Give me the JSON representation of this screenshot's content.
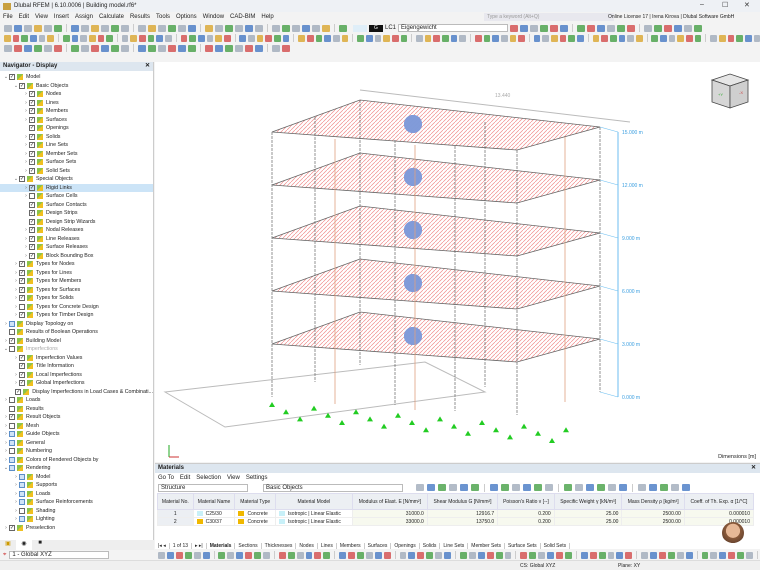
{
  "window": {
    "title": "Dlubal RFEM | 6.10.0006 | Building model.rf6*",
    "minimize": "–",
    "maximize": "☐",
    "close": "✕"
  },
  "menu": [
    "File",
    "Edit",
    "View",
    "Insert",
    "Assign",
    "Calculate",
    "Results",
    "Tools",
    "Options",
    "Window",
    "CAD-BIM",
    "Help"
  ],
  "search": {
    "placeholder": "Type a keyword (Alt+Q)"
  },
  "license": "Online License 17 | Irena Kirova | Dlubal Software GmbH",
  "loadcase": {
    "color_label": "G",
    "id": "LC1",
    "name": "Eigengewicht"
  },
  "navigator": {
    "title": "Navigator - Display",
    "items": [
      {
        "label": "Model",
        "level": 0,
        "arrow": "v",
        "check": "on"
      },
      {
        "label": "Basic Objects",
        "level": 1,
        "arrow": "v",
        "check": "on"
      },
      {
        "label": "Nodes",
        "level": 2,
        "arrow": ">",
        "check": "on"
      },
      {
        "label": "Lines",
        "level": 2,
        "arrow": ">",
        "check": "on"
      },
      {
        "label": "Members",
        "level": 2,
        "arrow": ">",
        "check": "on"
      },
      {
        "label": "Surfaces",
        "level": 2,
        "arrow": ">",
        "check": "on"
      },
      {
        "label": "Openings",
        "level": 2,
        "arrow": "",
        "check": "on"
      },
      {
        "label": "Solids",
        "level": 2,
        "arrow": ">",
        "check": "on"
      },
      {
        "label": "Line Sets",
        "level": 2,
        "arrow": ">",
        "check": "on"
      },
      {
        "label": "Member Sets",
        "level": 2,
        "arrow": ">",
        "check": "on"
      },
      {
        "label": "Surface Sets",
        "level": 2,
        "arrow": ">",
        "check": "on"
      },
      {
        "label": "Solid Sets",
        "level": 2,
        "arrow": ">",
        "check": "on"
      },
      {
        "label": "Special Objects",
        "level": 1,
        "arrow": "v",
        "check": "on"
      },
      {
        "label": "Rigid Links",
        "level": 2,
        "arrow": ">",
        "check": "on",
        "selected": true
      },
      {
        "label": "Surface Cells",
        "level": 2,
        "arrow": ">",
        "check": "off"
      },
      {
        "label": "Surface Contacts",
        "level": 2,
        "arrow": "",
        "check": "on"
      },
      {
        "label": "Design Strips",
        "level": 2,
        "arrow": "",
        "check": "on"
      },
      {
        "label": "Design Strip Wizards",
        "level": 2,
        "arrow": "",
        "check": "on"
      },
      {
        "label": "Nodal Releases",
        "level": 2,
        "arrow": ">",
        "check": "on"
      },
      {
        "label": "Line Releases",
        "level": 2,
        "arrow": ">",
        "check": "on"
      },
      {
        "label": "Surface Releases",
        "level": 2,
        "arrow": ">",
        "check": "on"
      },
      {
        "label": "Block Bounding Box",
        "level": 2,
        "arrow": ">",
        "check": "on"
      },
      {
        "label": "Types for Nodes",
        "level": 1,
        "arrow": ">",
        "check": "on"
      },
      {
        "label": "Types for Lines",
        "level": 1,
        "arrow": ">",
        "check": "on"
      },
      {
        "label": "Types for Members",
        "level": 1,
        "arrow": ">",
        "check": "on"
      },
      {
        "label": "Types for Surfaces",
        "level": 1,
        "arrow": ">",
        "check": "on"
      },
      {
        "label": "Types for Solids",
        "level": 1,
        "arrow": ">",
        "check": "on"
      },
      {
        "label": "Types for Concrete Design",
        "level": 1,
        "arrow": ">",
        "check": "off"
      },
      {
        "label": "Types for Timber Design",
        "level": 1,
        "arrow": ">",
        "check": "on"
      },
      {
        "label": "Display Topology on",
        "level": 0,
        "arrow": ">",
        "check": "partial"
      },
      {
        "label": "Results of Boolean Operations",
        "level": 0,
        "arrow": "",
        "check": "off"
      },
      {
        "label": "Building Model",
        "level": 0,
        "arrow": ">",
        "check": "on"
      },
      {
        "label": "Imperfections",
        "level": 0,
        "arrow": "v",
        "check": "off",
        "dim": true
      },
      {
        "label": "Imperfection Values",
        "level": 1,
        "arrow": ">",
        "check": "on"
      },
      {
        "label": "Title Information",
        "level": 1,
        "arrow": "",
        "check": "on"
      },
      {
        "label": "Local Imperfections",
        "level": 1,
        "arrow": ">",
        "check": "on"
      },
      {
        "label": "Global Imperfections",
        "level": 1,
        "arrow": ">",
        "check": "on"
      },
      {
        "label": "Display Imperfections in Load Cases & Combinati...",
        "level": 1,
        "arrow": "",
        "check": "on"
      },
      {
        "label": "Loads",
        "level": 0,
        "arrow": ">",
        "check": "off"
      },
      {
        "label": "Results",
        "level": 0,
        "arrow": "",
        "check": "off"
      },
      {
        "label": "Result Objects",
        "level": 0,
        "arrow": ">",
        "check": "on"
      },
      {
        "label": "Mesh",
        "level": 0,
        "arrow": ">",
        "check": "off"
      },
      {
        "label": "Guide Objects",
        "level": 0,
        "arrow": ">",
        "check": "partial"
      },
      {
        "label": "General",
        "level": 0,
        "arrow": ">",
        "check": "partial"
      },
      {
        "label": "Numbering",
        "level": 0,
        "arrow": ">",
        "check": "off"
      },
      {
        "label": "Colors of Rendered Objects by",
        "level": 0,
        "arrow": ">",
        "check": "partial"
      },
      {
        "label": "Rendering",
        "level": 0,
        "arrow": "v",
        "check": "partial"
      },
      {
        "label": "Model",
        "level": 1,
        "arrow": ">",
        "check": "partial"
      },
      {
        "label": "Supports",
        "level": 1,
        "arrow": ">",
        "check": "partial"
      },
      {
        "label": "Loads",
        "level": 1,
        "arrow": ">",
        "check": "partial"
      },
      {
        "label": "Surface Reinforcements",
        "level": 1,
        "arrow": ">",
        "check": "partial"
      },
      {
        "label": "Shading",
        "level": 1,
        "arrow": ">",
        "check": "off"
      },
      {
        "label": "Lighting",
        "level": 1,
        "arrow": ">",
        "check": "partial"
      },
      {
        "label": "Preselection",
        "level": 0,
        "arrow": ">",
        "check": "on"
      }
    ],
    "coord_system": "1 - Global XYZ"
  },
  "view": {
    "top_dimension": "13.440",
    "levels": [
      "15.000 m",
      "12.000 m",
      "9.000 m",
      "6.000 m",
      "3.000 m",
      "0.000 m"
    ],
    "dimensions_label": "Dimensions [m]",
    "cube_labels": [
      "+Y",
      "-X"
    ]
  },
  "materials": {
    "title": "Materials",
    "menu": [
      "Go To",
      "Edit",
      "Selection",
      "View",
      "Settings"
    ],
    "filter1": "Structure",
    "filter2": "Basic Objects",
    "columns": [
      "Material No.",
      "Material Name",
      "Material Type",
      "Material Model",
      "Modulus of Elast. E [N/mm²]",
      "Shear Modulus G [N/mm²]",
      "Poisson's Ratio ν [--]",
      "Specific Weight γ [kN/m³]",
      "Mass Density ρ [kg/m³]",
      "Coeff. of Th. Exp. α [1/°C]"
    ],
    "rows": [
      {
        "no": "1",
        "name": "C25/30",
        "name_color": "#c8f0f8",
        "type": "Concrete",
        "model": "Isotropic | Linear Elastic",
        "E": "31000.0",
        "G": "12916.7",
        "nu": "0.200",
        "gamma": "25.00",
        "rho": "2500.00",
        "alpha": "0.000010"
      },
      {
        "no": "2",
        "name": "C30/37",
        "name_color": "#f0b800",
        "type": "Concrete",
        "model": "Isotropic | Linear Elastic",
        "E": "33000.0",
        "G": "13750.0",
        "nu": "0.200",
        "gamma": "25.00",
        "rho": "2500.00",
        "alpha": "0.000010"
      }
    ],
    "pager": "1 of 13",
    "tabs": [
      "Materials",
      "Sections",
      "Thicknesses",
      "Nodes",
      "Lines",
      "Members",
      "Surfaces",
      "Openings",
      "Solids",
      "Line Sets",
      "Member Sets",
      "Surface Sets",
      "Solid Sets"
    ]
  },
  "status": {
    "cs": "CS: Global XYZ",
    "plane": "Plane: XY"
  }
}
